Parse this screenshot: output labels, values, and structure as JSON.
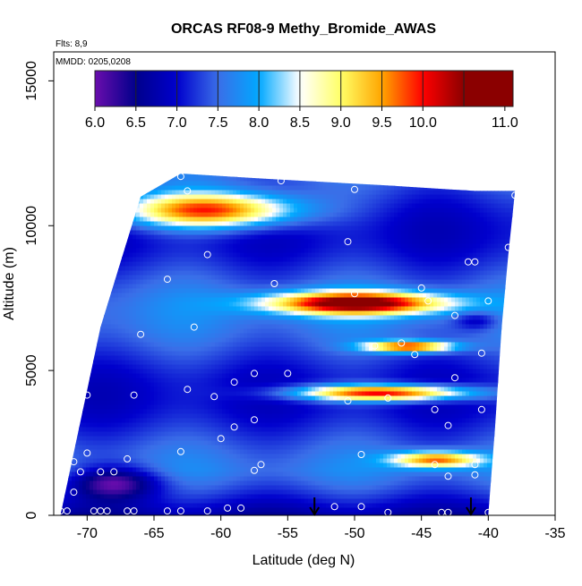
{
  "chart_data": {
    "type": "heatmap",
    "title": "ORCAS RF08-9 Methy_Bromide_AWAS",
    "annotations": [
      "Flts: 8,9",
      "MMDD: 0205,0208"
    ],
    "xlabel": "Latitude (deg N)",
    "ylabel": "Altitude (m)",
    "xlim": [
      -72.5,
      -35
    ],
    "ylim": [
      0,
      16000
    ],
    "x_ticks": [
      -70,
      -65,
      -60,
      -55,
      -50,
      -45,
      -40,
      -35
    ],
    "x_tick_labels": [
      "-70",
      "-65",
      "-60",
      "-55",
      "-50",
      "-45",
      "-40",
      "-35"
    ],
    "y_ticks": [
      0,
      5000,
      10000,
      15000
    ],
    "y_tick_labels": [
      "0",
      "5000",
      "10000",
      "15000"
    ],
    "grid": false,
    "colorbar": {
      "placement": "top",
      "range": [
        6.0,
        11.1
      ],
      "tick_values": [
        6.0,
        6.5,
        7.0,
        7.5,
        8.0,
        8.5,
        9.0,
        9.5,
        10.0,
        11.0
      ],
      "tick_labels": [
        "6.0",
        "6.5",
        "7.0",
        "7.5",
        "8.0",
        "8.5",
        "9.0",
        "9.5",
        "10.0",
        "11.0"
      ],
      "segment_breaks": [
        6.0,
        6.5,
        7.0,
        7.5,
        8.0,
        8.5,
        9.0,
        9.5,
        10.0,
        10.5,
        11.1
      ],
      "colors": [
        "#6a0dad",
        "#00008b",
        "#0000cd",
        "#3a6ee8",
        "#00a8ff",
        "#ffffff",
        "#ffff66",
        "#ffa500",
        "#ff0000",
        "#8b0000"
      ]
    },
    "background_value": 7.3,
    "domain": {
      "bottom_edge": [
        [
          -72,
          0
        ],
        [
          -40,
          0
        ]
      ],
      "left_edge": [
        [
          -72,
          0
        ],
        [
          -69,
          6500
        ],
        [
          -66,
          11000
        ],
        [
          -63,
          11800
        ]
      ],
      "top_edge": [
        [
          -63,
          11800
        ],
        [
          -56,
          11600
        ],
        [
          -48,
          11400
        ],
        [
          -41,
          11200
        ],
        [
          -38,
          11200
        ]
      ],
      "right_edge": [
        [
          -38,
          11200
        ],
        [
          -38.5,
          9000
        ],
        [
          -39,
          6500
        ],
        [
          -39.5,
          3000
        ],
        [
          -40,
          0
        ]
      ]
    },
    "features": [
      {
        "name": "upper-band",
        "center_lat": -61,
        "center_alt": 10600,
        "half_width_deg": 6,
        "half_height_m": 550,
        "peak": 10.1
      },
      {
        "name": "mid-band",
        "center_lat": -50,
        "center_alt": 7400,
        "half_width_deg": 6,
        "half_height_m": 350,
        "peak": 10.6
      },
      {
        "name": "mid-lower-band",
        "center_lat": -46,
        "center_alt": 5900,
        "half_width_deg": 3,
        "half_height_m": 180,
        "peak": 10.0
      },
      {
        "name": "lower-band",
        "center_lat": -48,
        "center_alt": 4300,
        "half_width_deg": 6,
        "half_height_m": 250,
        "peak": 10.3
      },
      {
        "name": "low-band",
        "center_lat": -44,
        "center_alt": 2000,
        "half_width_deg": 3,
        "half_height_m": 250,
        "peak": 9.6
      },
      {
        "name": "polar-low",
        "center_lat": -68,
        "center_alt": 1200,
        "half_width_deg": 3,
        "half_height_m": 500,
        "peak": 6.0
      },
      {
        "name": "dark-patch",
        "center_lat": -41,
        "center_alt": 6800,
        "half_width_deg": 1.5,
        "half_height_m": 300,
        "peak": 6.6
      }
    ],
    "sample_points": [
      [
        -63,
        11700
      ],
      [
        -62.5,
        11200
      ],
      [
        -55.5,
        11550
      ],
      [
        -50,
        11250
      ],
      [
        -38,
        11050
      ],
      [
        -67.5,
        10800
      ],
      [
        -68,
        9600
      ],
      [
        -61,
        9000
      ],
      [
        -50.5,
        9450
      ],
      [
        -38.5,
        9250
      ],
      [
        -41.5,
        8750
      ],
      [
        -41,
        8750
      ],
      [
        -64,
        8150
      ],
      [
        -56,
        8000
      ],
      [
        -45,
        7850
      ],
      [
        -68.5,
        8550
      ],
      [
        -69.5,
        7100
      ],
      [
        -50,
        7650
      ],
      [
        -44.5,
        7400
      ],
      [
        -40,
        7400
      ],
      [
        -42.5,
        6900
      ],
      [
        -48.5,
        5850
      ],
      [
        -46.5,
        5950
      ],
      [
        -45.5,
        5550
      ],
      [
        -40.5,
        5600
      ],
      [
        -66,
        6250
      ],
      [
        -62,
        6500
      ],
      [
        -55,
        4900
      ],
      [
        -59,
        4600
      ],
      [
        -57.5,
        4900
      ],
      [
        -42.5,
        4750
      ],
      [
        -38,
        4800
      ],
      [
        -70,
        4150
      ],
      [
        -66.5,
        4150
      ],
      [
        -60.5,
        4100
      ],
      [
        -62.5,
        4350
      ],
      [
        -50.5,
        3950
      ],
      [
        -47.5,
        4050
      ],
      [
        -44,
        3650
      ],
      [
        -40.5,
        3650
      ],
      [
        -43,
        3100
      ],
      [
        -57.5,
        3300
      ],
      [
        -59,
        3050
      ],
      [
        -60,
        2650
      ],
      [
        -38,
        2900
      ],
      [
        -70,
        2150
      ],
      [
        -63,
        2200
      ],
      [
        -49.5,
        2100
      ],
      [
        -67,
        1950
      ],
      [
        -41,
        1750
      ],
      [
        -71,
        1850
      ],
      [
        -70.5,
        1500
      ],
      [
        -69,
        1500
      ],
      [
        -68,
        1500
      ],
      [
        -57,
        1750
      ],
      [
        -57.5,
        1550
      ],
      [
        -44,
        1750
      ],
      [
        -43,
        1350
      ],
      [
        -41,
        1400
      ],
      [
        -71,
        800
      ],
      [
        -69.5,
        150
      ],
      [
        -69,
        150
      ],
      [
        -68.5,
        150
      ],
      [
        -67,
        150
      ],
      [
        -66.5,
        150
      ],
      [
        -64,
        150
      ],
      [
        -63,
        150
      ],
      [
        -61,
        150
      ],
      [
        -59.5,
        250
      ],
      [
        -58.5,
        250
      ],
      [
        -51.5,
        300
      ],
      [
        -49.5,
        300
      ],
      [
        -47.5,
        100
      ],
      [
        -43.5,
        100
      ],
      [
        -43,
        100
      ],
      [
        -40,
        100
      ],
      [
        -72,
        150
      ],
      [
        -71.5,
        150
      ]
    ],
    "markers": [
      {
        "type": "arrow",
        "lat": -53
      },
      {
        "type": "arrow",
        "lat": -41.3
      }
    ]
  }
}
